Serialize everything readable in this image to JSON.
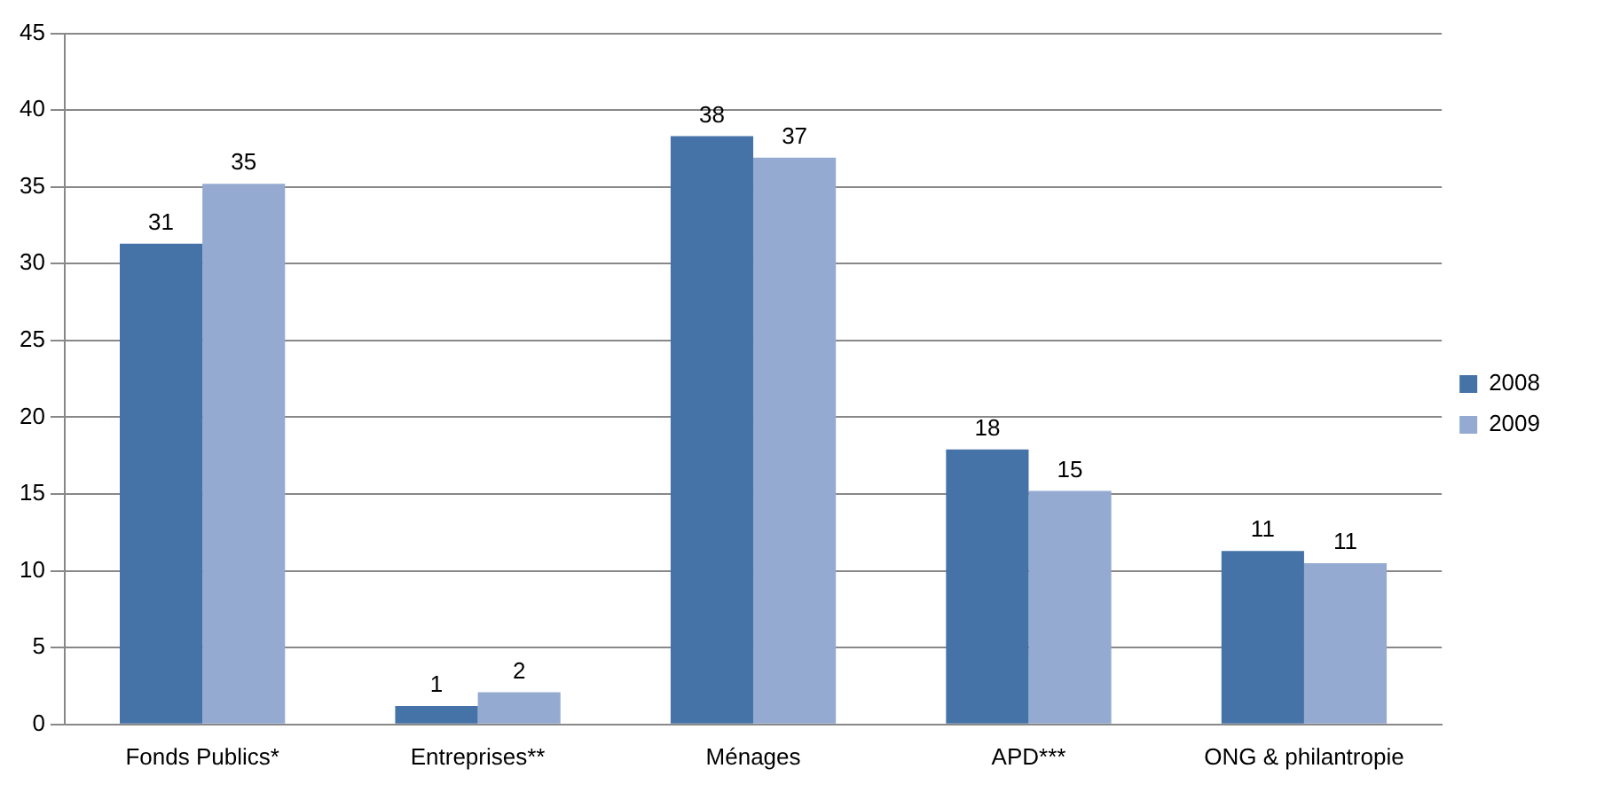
{
  "chart_data": {
    "type": "bar",
    "categories": [
      "Fonds Publics*",
      "Entreprises**",
      "Ménages",
      "APD***",
      "ONG & philantropie"
    ],
    "series": [
      {
        "name": "2008",
        "color": "#4572a7",
        "values": [
          31.3,
          1.2,
          38.3,
          17.9,
          11.3
        ],
        "value_labels": [
          "31",
          "1",
          "38",
          "18",
          "11"
        ]
      },
      {
        "name": "2009",
        "color": "#95aad1",
        "values": [
          35.2,
          2.1,
          36.9,
          15.2,
          10.5
        ],
        "value_labels": [
          "35",
          "2",
          "37",
          "15",
          "11"
        ]
      }
    ],
    "ylim": [
      0,
      45
    ],
    "yticks": [
      0,
      5,
      10,
      15,
      20,
      25,
      30,
      35,
      40,
      45
    ],
    "grid": "y",
    "legend": "right"
  }
}
